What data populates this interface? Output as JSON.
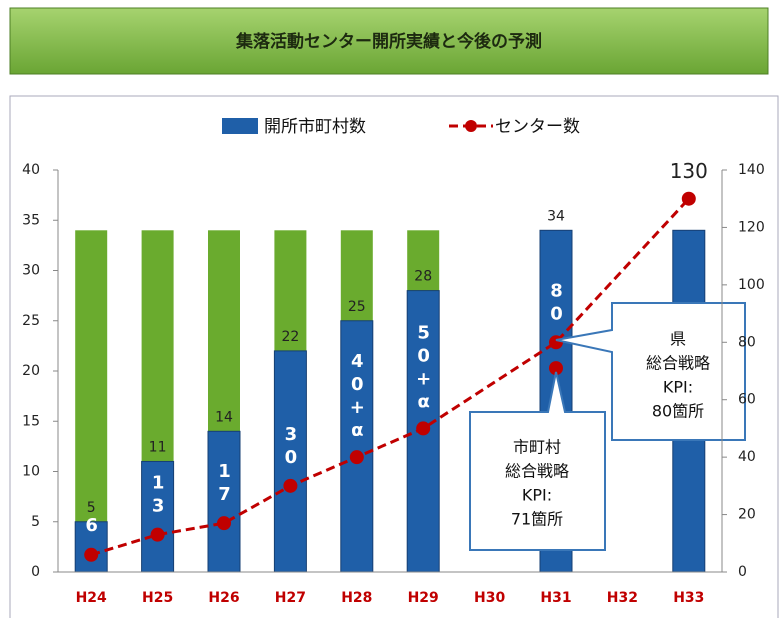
{
  "chart_data": {
    "type": "bar",
    "title": "集落活動センター開所実績と今後の予測",
    "categories": [
      "H24",
      "H25",
      "H26",
      "H27",
      "H28",
      "H29",
      "H30",
      "H31",
      "H32",
      "H33"
    ],
    "series": [
      {
        "type": "bar",
        "color": "#6aab2e",
        "values": [
          34,
          34,
          34,
          34,
          34,
          34,
          null,
          null,
          null,
          null
        ]
      },
      {
        "type": "bar",
        "name": "開所市町村数",
        "color": "#1f5fa8",
        "values": [
          5,
          11,
          14,
          22,
          25,
          28,
          null,
          34,
          null,
          34
        ],
        "value_labels": [
          "5",
          "11",
          "14",
          "22",
          "25",
          "28",
          null,
          "34",
          null,
          null
        ]
      },
      {
        "type": "line",
        "name": "センター数",
        "color": "#c00000",
        "axis": "y2",
        "x": [
          "H24",
          "H25",
          "H26",
          "H27",
          "H28",
          "H29",
          "H31",
          "H33"
        ],
        "values": [
          6,
          13,
          17,
          30,
          40,
          50,
          80,
          130
        ],
        "value_labels": [
          "6",
          "13",
          "17",
          "30",
          "40+α",
          "50+α",
          "80",
          "130"
        ]
      },
      {
        "type": "point",
        "color": "#c00000",
        "axis": "y2",
        "x": [
          "H31"
        ],
        "values": [
          71
        ]
      }
    ],
    "ylim": [
      0,
      40
    ],
    "yticks": [
      0,
      5,
      10,
      15,
      20,
      25,
      30,
      35,
      40
    ],
    "y2lim": [
      0,
      140
    ],
    "y2ticks": [
      0,
      20,
      40,
      60,
      80,
      100,
      120,
      140
    ],
    "grid": false,
    "annotations": [
      {
        "lines": [
          "県",
          "総合戦略",
          "KPI:",
          "80箇所"
        ]
      },
      {
        "lines": [
          "市町村",
          "総合戦略",
          "KPI:",
          "71箇所"
        ]
      }
    ]
  }
}
